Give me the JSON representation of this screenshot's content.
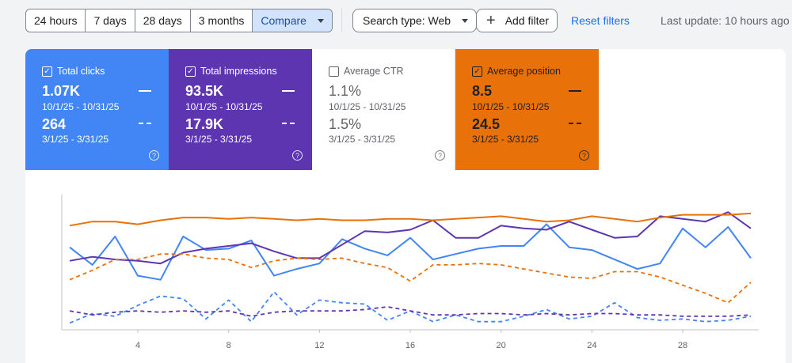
{
  "toolbar": {
    "ranges": [
      "24 hours",
      "7 days",
      "28 days",
      "3 months"
    ],
    "compare_label": "Compare",
    "search_type_label": "Search type: Web",
    "add_filter_label": "Add filter",
    "reset_label": "Reset filters",
    "last_update": "Last update: 10 hours ago"
  },
  "cards": [
    {
      "title": "Total clicks",
      "checked": true,
      "value1": "1.07K",
      "range1": "10/1/25 - 10/31/25",
      "value2": "264",
      "range2": "3/1/25 - 3/31/25",
      "color": "#4285f4"
    },
    {
      "title": "Total impressions",
      "checked": true,
      "value1": "93.5K",
      "range1": "10/1/25 - 10/31/25",
      "value2": "17.9K",
      "range2": "3/1/25 - 3/31/25",
      "color": "#5e35b1"
    },
    {
      "title": "Average CTR",
      "checked": false,
      "value1": "1.1%",
      "range1": "10/1/25 - 10/31/25",
      "value2": "1.5%",
      "range2": "3/1/25 - 3/31/25",
      "color": "#ffffff"
    },
    {
      "title": "Average position",
      "checked": true,
      "value1": "8.5",
      "range1": "10/1/25 - 10/31/25",
      "value2": "24.5",
      "range2": "3/1/25 - 3/31/25",
      "color": "#e8710a"
    }
  ],
  "chart_data": {
    "type": "line",
    "x": [
      1,
      2,
      3,
      4,
      5,
      6,
      7,
      8,
      9,
      10,
      11,
      12,
      13,
      14,
      15,
      16,
      17,
      18,
      19,
      20,
      21,
      22,
      23,
      24,
      25,
      26,
      27,
      28,
      29,
      30,
      31
    ],
    "x_ticks": [
      "4",
      "8",
      "12",
      "16",
      "20",
      "24",
      "28"
    ],
    "x_tick_values": [
      4,
      8,
      12,
      16,
      20,
      24,
      28
    ],
    "series": [
      {
        "color": "#4285f4",
        "dashed": false,
        "values": [
          0.61,
          0.48,
          0.69,
          0.4,
          0.37,
          0.69,
          0.59,
          0.6,
          0.66,
          0.4,
          0.45,
          0.49,
          0.67,
          0.6,
          0.55,
          0.68,
          0.52,
          0.56,
          0.6,
          0.62,
          0.62,
          0.78,
          0.61,
          0.59,
          0.52,
          0.45,
          0.49,
          0.75,
          0.61,
          0.76,
          0.53
        ]
      },
      {
        "color": "#5e35b1",
        "dashed": false,
        "values": [
          0.51,
          0.54,
          0.52,
          0.51,
          0.49,
          0.57,
          0.6,
          0.62,
          0.64,
          0.58,
          0.53,
          0.53,
          0.63,
          0.73,
          0.72,
          0.74,
          0.81,
          0.68,
          0.68,
          0.77,
          0.75,
          0.74,
          0.8,
          0.74,
          0.68,
          0.69,
          0.84,
          0.82,
          0.8,
          0.87,
          0.75
        ]
      },
      {
        "color": "#e8710a",
        "dashed": false,
        "values": [
          0.77,
          0.8,
          0.8,
          0.78,
          0.81,
          0.83,
          0.83,
          0.82,
          0.83,
          0.82,
          0.81,
          0.82,
          0.81,
          0.81,
          0.82,
          0.82,
          0.81,
          0.82,
          0.83,
          0.84,
          0.82,
          0.8,
          0.81,
          0.84,
          0.82,
          0.8,
          0.83,
          0.85,
          0.85,
          0.85,
          0.86
        ]
      },
      {
        "color": "#4285f4",
        "dashed": true,
        "values": [
          0.05,
          0.12,
          0.1,
          0.18,
          0.25,
          0.23,
          0.08,
          0.22,
          0.06,
          0.28,
          0.11,
          0.22,
          0.2,
          0.19,
          0.07,
          0.14,
          0.06,
          0.11,
          0.06,
          0.06,
          0.1,
          0.15,
          0.08,
          0.1,
          0.2,
          0.09,
          0.07,
          0.08,
          0.06,
          0.07,
          0.1
        ]
      },
      {
        "color": "#5e35b1",
        "dashed": true,
        "values": [
          0.14,
          0.11,
          0.13,
          0.14,
          0.13,
          0.14,
          0.13,
          0.14,
          0.1,
          0.13,
          0.14,
          0.14,
          0.14,
          0.15,
          0.17,
          0.14,
          0.11,
          0.11,
          0.12,
          0.12,
          0.11,
          0.12,
          0.11,
          0.12,
          0.12,
          0.11,
          0.11,
          0.1,
          0.1,
          0.1,
          0.11
        ]
      },
      {
        "color": "#e8710a",
        "dashed": true,
        "values": [
          0.37,
          0.44,
          0.52,
          0.52,
          0.56,
          0.56,
          0.53,
          0.52,
          0.46,
          0.51,
          0.53,
          0.52,
          0.53,
          0.49,
          0.46,
          0.36,
          0.48,
          0.48,
          0.49,
          0.48,
          0.45,
          0.42,
          0.39,
          0.38,
          0.43,
          0.43,
          0.39,
          0.33,
          0.27,
          0.2,
          0.35
        ]
      }
    ],
    "xlim": [
      1,
      31
    ],
    "ylim": [
      0,
      1
    ],
    "grid": false
  }
}
